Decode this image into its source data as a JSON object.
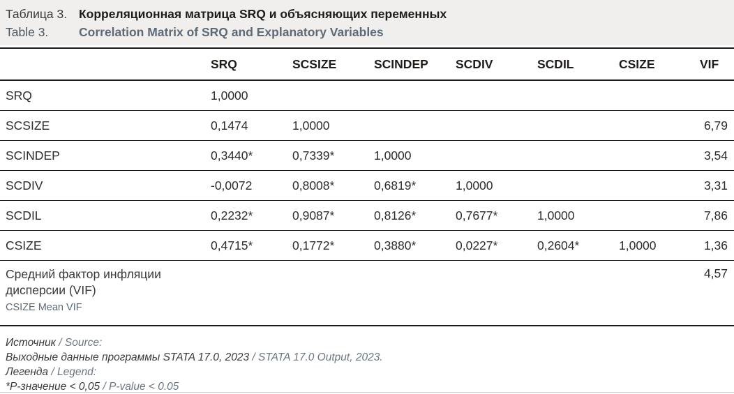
{
  "title": {
    "ru_label": "Таблица 3.",
    "ru_text": "Корреляционная матрица SRQ и объясняющих переменных",
    "en_label": "Table 3.",
    "en_text": "Correlation Matrix of SRQ and Explanatory Variables"
  },
  "table": {
    "columns": [
      "SRQ",
      "SCSIZE",
      "SCINDEP",
      "SCDIV",
      "SCDIL",
      "CSIZE",
      "VIF"
    ],
    "rows": [
      {
        "label": "SRQ",
        "values": [
          "1,0000",
          "",
          "",
          "",
          "",
          ""
        ],
        "vif": ""
      },
      {
        "label": "SCSIZE",
        "values": [
          "0,1474",
          "1,0000",
          "",
          "",
          "",
          ""
        ],
        "vif": "6,79"
      },
      {
        "label": "SCINDEP",
        "values": [
          "0,3440*",
          "0,7339*",
          "1,0000",
          "",
          "",
          ""
        ],
        "vif": "3,54"
      },
      {
        "label": "SCDIV",
        "values": [
          "-0,0072",
          "0,8008*",
          "0,6819*",
          "1,0000",
          "",
          ""
        ],
        "vif": "3,31"
      },
      {
        "label": "SCDIL",
        "values": [
          "0,2232*",
          "0,9087*",
          "0,8126*",
          "0,7677*",
          "1,0000",
          ""
        ],
        "vif": "7,86"
      },
      {
        "label": "CSIZE",
        "values": [
          "0,4715*",
          "0,1772*",
          "0,3880*",
          "0,0227*",
          "0,2604*",
          "1,0000"
        ],
        "vif": "1,36"
      }
    ],
    "summary_row": {
      "label_ru": "Средний фактор инфляции дисперсии (VIF)",
      "label_en": "CSIZE Mean VIF",
      "vif": "4,57"
    }
  },
  "notes": {
    "lines": [
      {
        "dark": "Источник",
        "gray": " / Source:"
      },
      {
        "dark": "Выходные данные программы STATA 17.0, 2023",
        "gray": " / STATA 17.0 Output, 2023."
      },
      {
        "dark": "Легенда",
        "gray": " / Legend:"
      },
      {
        "dark": "*P-значение < 0,05",
        "gray": " / P-value < 0.05"
      }
    ]
  },
  "colors": {
    "caption_band_bg": "#f0efed",
    "dark_text": "#2e2c2a",
    "slate_gray_text": "#5d6974",
    "note_gray_text": "#6b7680",
    "rule_dark": "#1c1a19",
    "rule_light": "#c6c6c6"
  }
}
